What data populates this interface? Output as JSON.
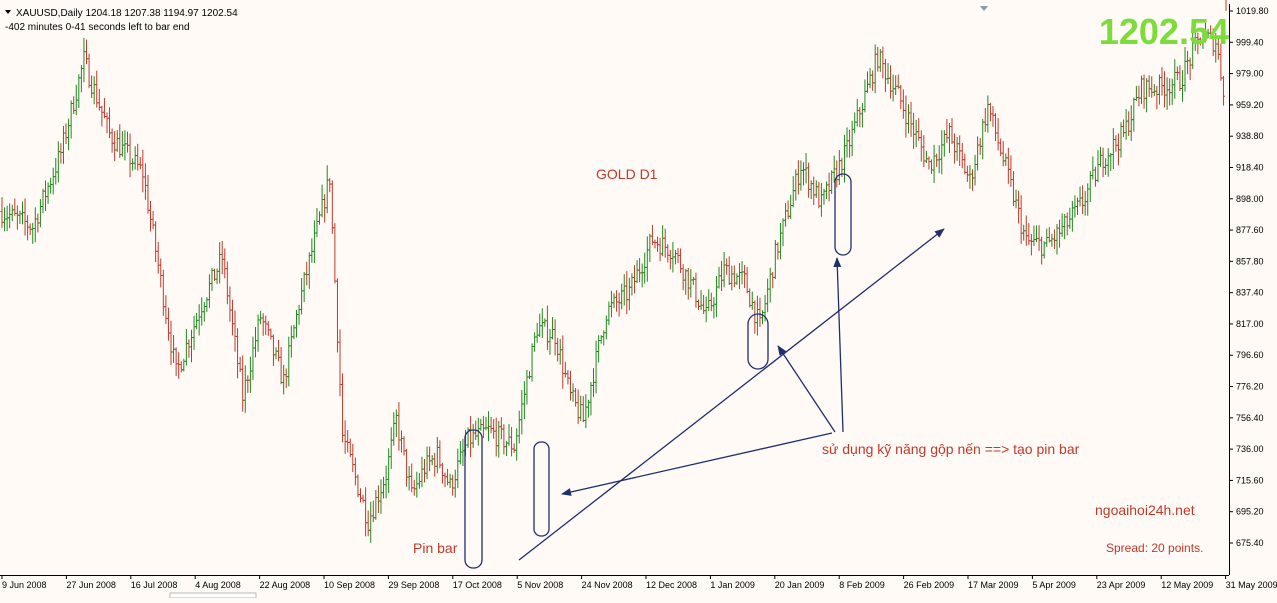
{
  "header": {
    "symbol_line": "XAUUSD,Daily  1204.18 1207.38 1194.97 1202.54",
    "timer_line": "-402 minutes 0-41 seconds left to bar end",
    "last_price": "1202.54"
  },
  "annotations": {
    "chart_label": "GOLD D1",
    "pin_bar_label": "Pin bar",
    "technique_label": "sử dụng kỹ năng gộp nến ==> tạo pin bar",
    "watermark": "ngoaihoi24h.net",
    "spread": "Spread: 20 points."
  },
  "colors": {
    "up": "#1d8a1d",
    "down": "#c0392b",
    "background": "#fffaf6",
    "annotation": "#c0392b",
    "price": "#7ddc3a",
    "arrow": "#1f2f6e"
  },
  "chart_data": {
    "type": "candlestick",
    "symbol": "XAUUSD",
    "timeframe": "Daily",
    "y_ticks": [
      "1019.80",
      "999.40",
      "979.00",
      "959.20",
      "938.80",
      "918.40",
      "898.00",
      "877.60",
      "857.80",
      "837.40",
      "817.00",
      "796.60",
      "776.20",
      "756.40",
      "736.00",
      "715.60",
      "695.20",
      "675.40"
    ],
    "x_ticks": [
      "9 Jun 2008",
      "27 Jun 2008",
      "16 Jul 2008",
      "4 Aug 2008",
      "22 Aug 2008",
      "10 Sep 2008",
      "29 Sep 2008",
      "17 Oct 2008",
      "5 Nov 2008",
      "24 Nov 2008",
      "12 Dec 2008",
      "1 Jan 2009",
      "20 Jan 2009",
      "8 Feb 2009",
      "26 Feb 2009",
      "17 Mar 2009",
      "5 Apr 2009",
      "23 Apr 2009",
      "12 May 2009",
      "31 May 2009"
    ],
    "ylim": [
      675.4,
      1019.8
    ],
    "key_prices": [
      890,
      880,
      928,
      988,
      940,
      915,
      785,
      830,
      860,
      770,
      822,
      780,
      830,
      912,
      745,
      690,
      720,
      755,
      706,
      724,
      732,
      712,
      742,
      748,
      738,
      815,
      810,
      770,
      755,
      825,
      838,
      872,
      865,
      840,
      822,
      852,
      845,
      815,
      862,
      920,
      895,
      930,
      990,
      965,
      920,
      940,
      910,
      958,
      918,
      870,
      868,
      880,
      896,
      925,
      940,
      970,
      970,
      975,
      1003,
      1000,
      960
    ],
    "key_days": [
      0,
      12,
      23,
      32,
      42,
      55,
      68,
      78,
      86,
      94,
      101,
      110,
      116,
      128,
      133,
      143,
      150,
      154,
      160,
      165,
      170,
      175,
      182,
      190,
      200,
      209,
      216,
      222,
      227,
      236,
      245,
      254,
      262,
      270,
      275,
      282,
      290,
      296,
      302,
      312,
      320,
      330,
      342,
      350,
      362,
      370,
      378,
      385,
      392,
      400,
      408,
      415,
      422,
      430,
      438,
      445,
      452,
      460,
      468,
      474,
      478
    ],
    "selected": {
      "open": 1204.18,
      "high": 1207.38,
      "low": 1194.97,
      "close": 1202.54
    }
  }
}
